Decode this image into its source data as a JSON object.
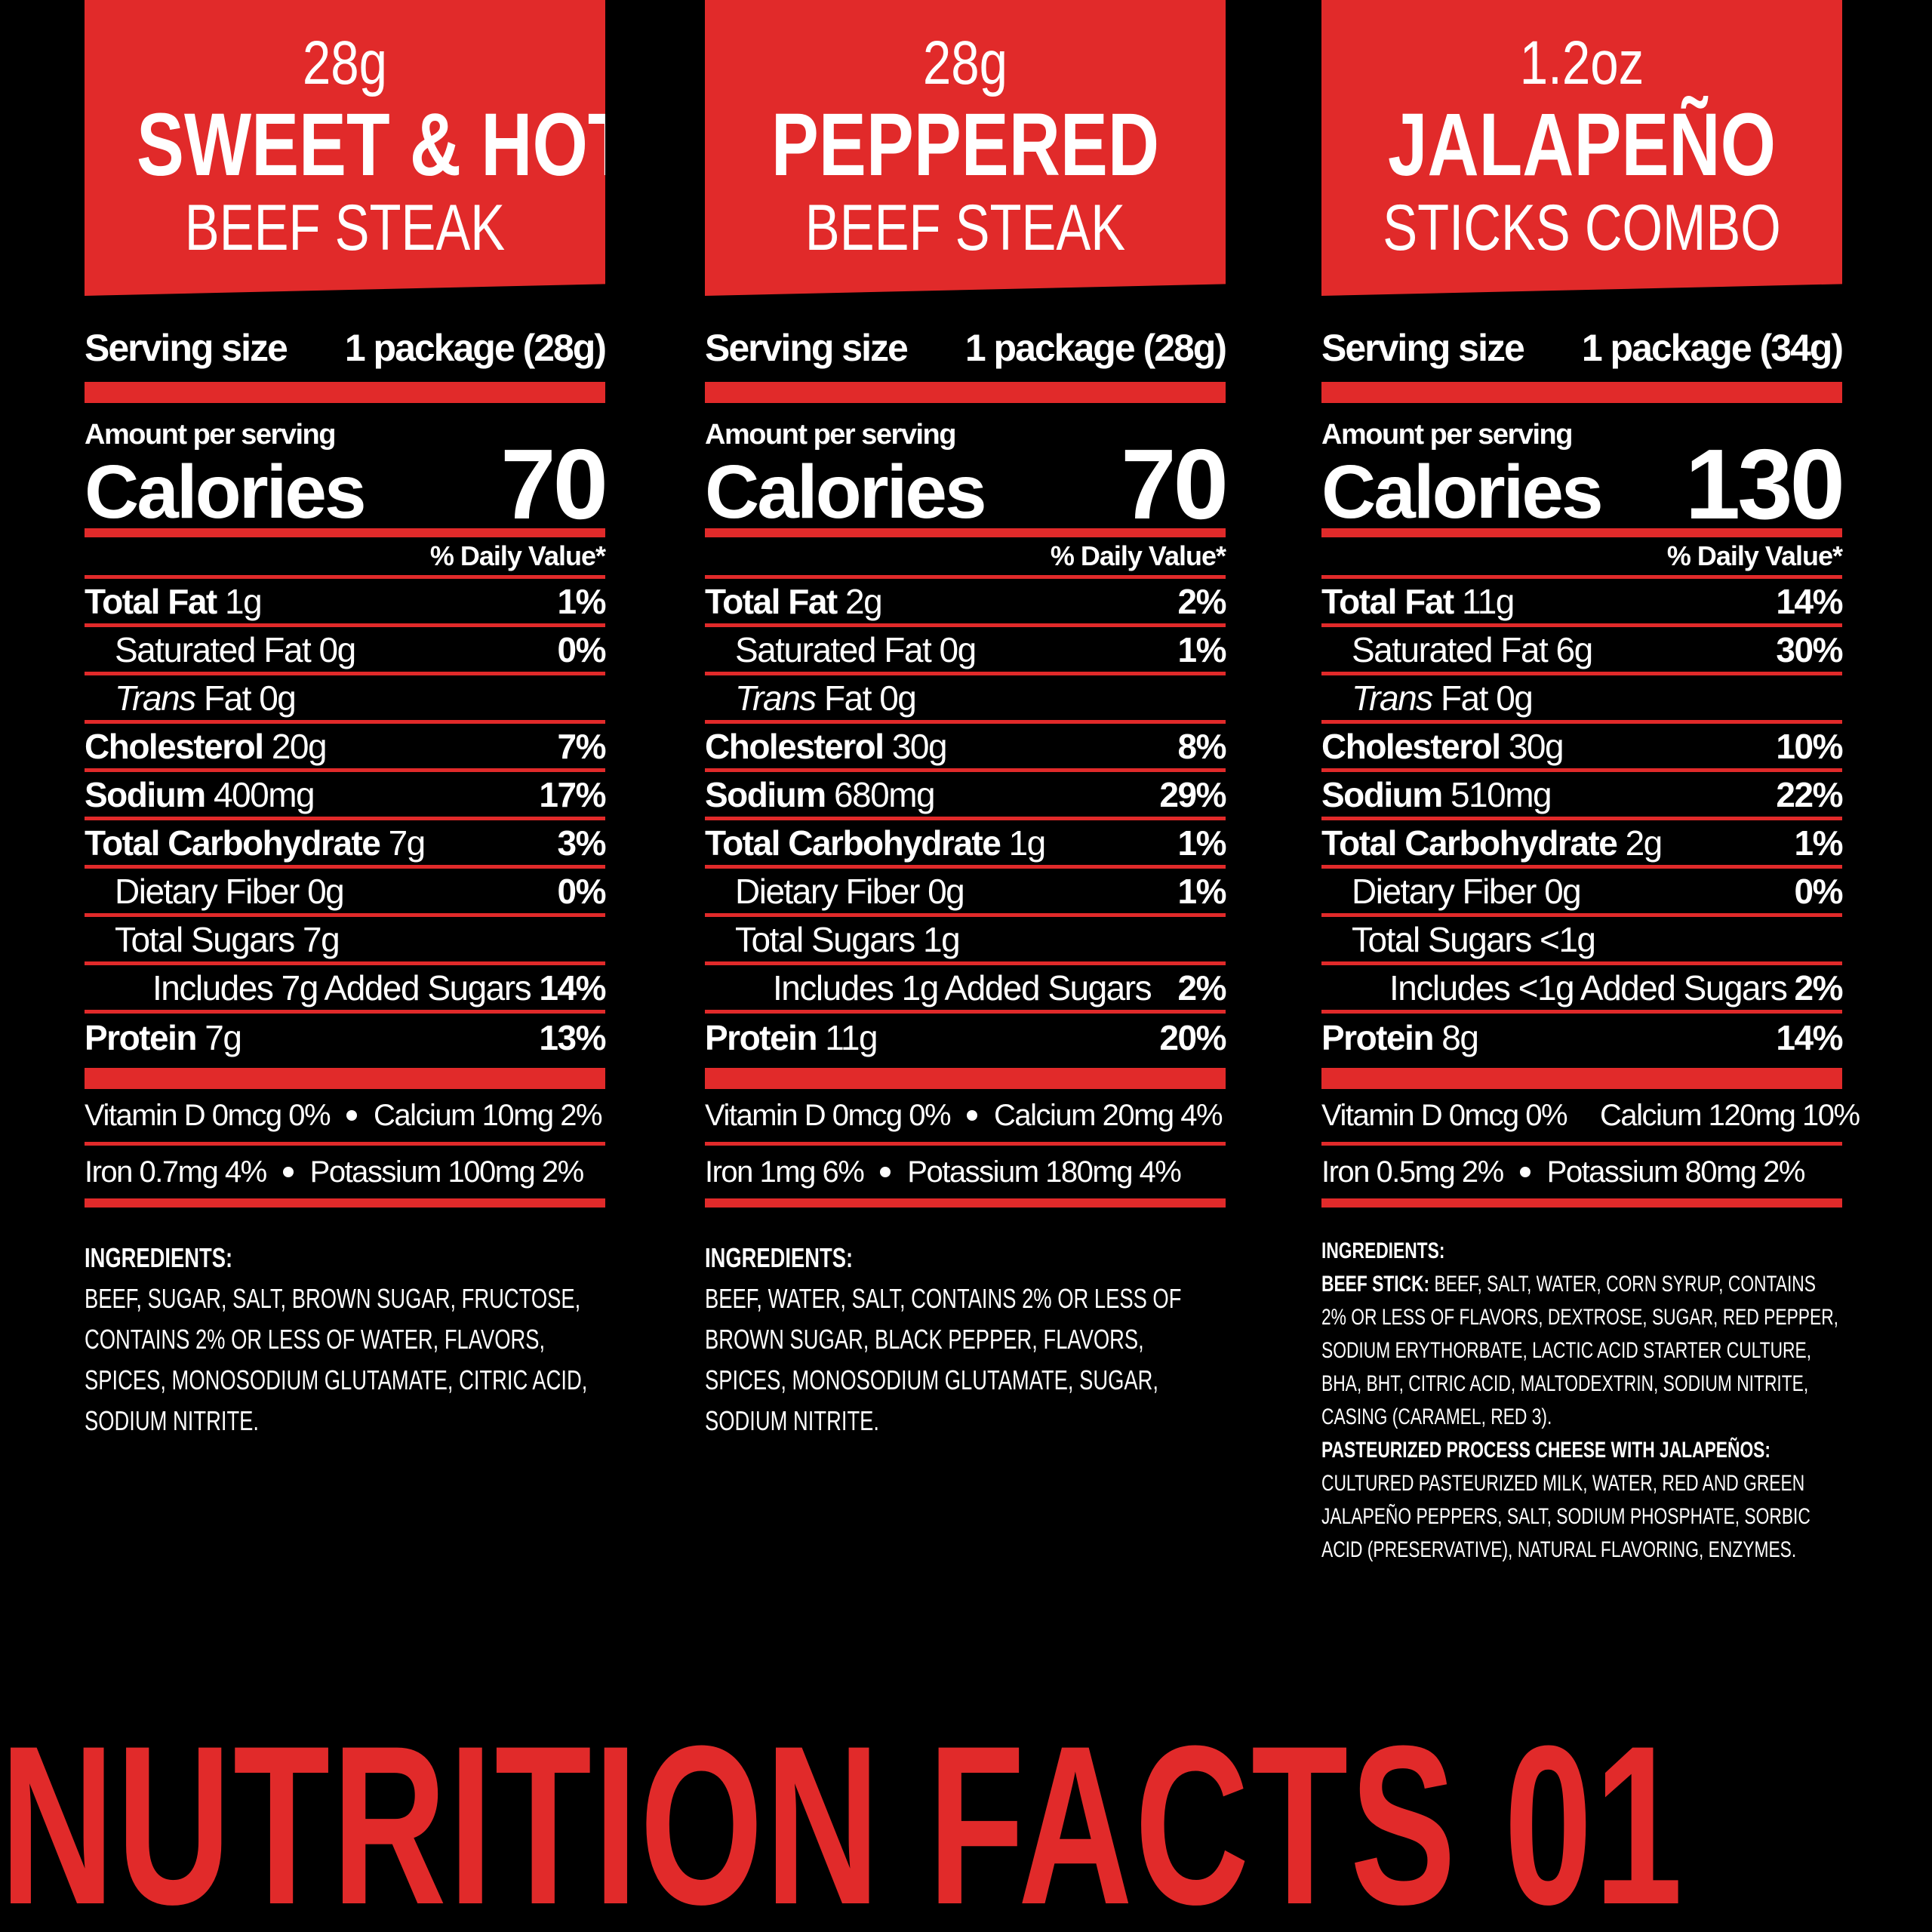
{
  "panels": [
    {
      "banner": {
        "size": "28g",
        "name": "SWEET & HOT",
        "sub": "BEEF STEAK"
      },
      "serving_label": "Serving size",
      "serving_value": "1 package (28g)",
      "amount_label": "Amount per serving",
      "calories_label": "Calories",
      "calories": "70",
      "dv_label": "% Daily Value*",
      "rows": [
        {
          "label": "Total Fat",
          "value": "1g",
          "pct": "1%"
        },
        {
          "label": "Saturated Fat",
          "value": "0g",
          "pct": "0%"
        },
        {
          "label": "Trans",
          "value": "Fat 0g",
          "pct": ""
        },
        {
          "label": "Cholesterol",
          "value": "20g",
          "pct": "7%"
        },
        {
          "label": "Sodium",
          "value": "400mg",
          "pct": "17%"
        },
        {
          "label": "Total Carbohydrate",
          "value": "7g",
          "pct": "3%"
        },
        {
          "label": "Dietary Fiber",
          "value": "0g",
          "pct": "0%"
        },
        {
          "label": "Total Sugars",
          "value": "7g",
          "pct": ""
        },
        {
          "label": "Includes 7g Added Sugars",
          "value": "",
          "pct": "14%"
        },
        {
          "label": "Protein",
          "value": "7g",
          "pct": "13%"
        }
      ],
      "vit_line1_a": "Vitamin D 0mcg 0%",
      "vit_line1_b": "Calcium 10mg 2%",
      "vit_line2_a": "Iron 0.7mg 4%",
      "vit_line2_b": "Potassium 100mg 2%",
      "ingredients_title": "INGREDIENTS:",
      "ingredients": "BEEF, SUGAR, SALT, BROWN SUGAR, FRUCTOSE, CONTAINS 2% OR LESS OF WATER, FLAVORS, SPICES, MONOSODIUM GLUTAMATE, CITRIC ACID, SODIUM NITRITE."
    },
    {
      "banner": {
        "size": "28g",
        "name": "PEPPERED",
        "sub": "BEEF STEAK"
      },
      "serving_label": "Serving size",
      "serving_value": "1 package (28g)",
      "amount_label": "Amount per serving",
      "calories_label": "Calories",
      "calories": "70",
      "dv_label": "% Daily Value*",
      "rows": [
        {
          "label": "Total Fat",
          "value": "2g",
          "pct": "2%"
        },
        {
          "label": "Saturated Fat",
          "value": "0g",
          "pct": "1%"
        },
        {
          "label": "Trans",
          "value": "Fat 0g",
          "pct": ""
        },
        {
          "label": "Cholesterol",
          "value": "30g",
          "pct": "8%"
        },
        {
          "label": "Sodium",
          "value": "680mg",
          "pct": "29%"
        },
        {
          "label": "Total Carbohydrate",
          "value": "1g",
          "pct": "1%"
        },
        {
          "label": "Dietary Fiber",
          "value": "0g",
          "pct": "1%"
        },
        {
          "label": "Total Sugars",
          "value": "1g",
          "pct": ""
        },
        {
          "label": "Includes 1g Added Sugars",
          "value": "",
          "pct": "2%"
        },
        {
          "label": "Protein",
          "value": "11g",
          "pct": "20%"
        }
      ],
      "vit_line1_a": "Vitamin D 0mcg 0%",
      "vit_line1_b": "Calcium 20mg 4%",
      "vit_line2_a": "Iron 1mg 6%",
      "vit_line2_b": "Potassium 180mg 4%",
      "ingredients_title": "INGREDIENTS:",
      "ingredients": "BEEF, WATER, SALT, CONTAINS 2% OR LESS OF BROWN SUGAR, BLACK PEPPER, FLAVORS, SPICES, MONOSODIUM GLUTAMATE, SUGAR, SODIUM NITRITE."
    },
    {
      "banner": {
        "size": "1.2oz",
        "name": "JALAPEÑO",
        "sub": "STICKS COMBO"
      },
      "serving_label": "Serving size",
      "serving_value": "1 package (34g)",
      "amount_label": "Amount per serving",
      "calories_label": "Calories",
      "calories": "130",
      "dv_label": "% Daily Value*",
      "rows": [
        {
          "label": "Total Fat",
          "value": "11g",
          "pct": "14%"
        },
        {
          "label": "Saturated Fat",
          "value": "6g",
          "pct": "30%"
        },
        {
          "label": "Trans",
          "value": "Fat 0g",
          "pct": ""
        },
        {
          "label": "Cholesterol",
          "value": "30g",
          "pct": "10%"
        },
        {
          "label": "Sodium",
          "value": "510mg",
          "pct": "22%"
        },
        {
          "label": "Total Carbohydrate",
          "value": "2g",
          "pct": "1%"
        },
        {
          "label": "Dietary Fiber",
          "value": "0g",
          "pct": "0%"
        },
        {
          "label": "Total Sugars",
          "value": "<1g",
          "pct": ""
        },
        {
          "label": "Includes <1g Added Sugars",
          "value": "",
          "pct": "2%"
        },
        {
          "label": "Protein",
          "value": "8g",
          "pct": "14%"
        }
      ],
      "vit_line1_a": "Vitamin D 0mcg 0%",
      "vit_line1_b": "Calcium 120mg 10%",
      "vit_line2_a": "Iron 0.5mg 2%",
      "vit_line2_b": "Potassium 80mg 2%",
      "ingredients_title": "INGREDIENTS:",
      "ingredients_sub1_title": "BEEF STICK:",
      "ingredients_sub1": "BEEF, SALT, WATER, CORN SYRUP, CONTAINS 2% OR LESS OF FLAVORS, DEXTROSE, SUGAR, RED PEPPER, SODIUM ERYTHORBATE, LACTIC ACID STARTER CULTURE, BHA, BHT, CITRIC ACID, MALTODEXTRIN, SODIUM NITRITE, CASING (CARAMEL, RED 3).",
      "ingredients_sub2_title": "PASTEURIZED PROCESS CHEESE WITH JALAPEÑOS:",
      "ingredients_sub2": "CULTURED PASTEURIZED MILK, WATER, RED AND GREEN JALAPEÑO PEPPERS, SALT, SODIUM PHOSPHATE, SORBIC ACID (PRESERVATIVE), NATURAL FLAVORING, ENZYMES."
    }
  ],
  "footer_title": "NUTRITION FACTS 01",
  "colors": {
    "accent": "#e12a2a",
    "background": "#000000",
    "text": "#ffffff"
  }
}
